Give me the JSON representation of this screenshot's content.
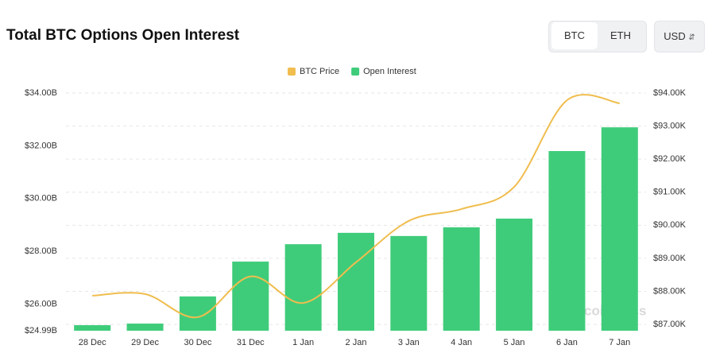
{
  "header": {
    "title": "Total BTC Options Open Interest",
    "asset_options": [
      "BTC",
      "ETH"
    ],
    "currency": "USD"
  },
  "chart_data": {
    "type": "bar-line",
    "watermark": "coinglass",
    "categories": [
      "28 Dec",
      "29 Dec",
      "30 Dec",
      "31 Dec",
      "1 Jan",
      "2 Jan",
      "3 Jan",
      "4 Jan",
      "5 Jan",
      "6 Jan",
      "7 Jan"
    ],
    "series": [
      {
        "name": "BTC Price",
        "type": "line",
        "axis": "y2",
        "color": "#f0bd4e",
        "values": [
          87.87,
          87.92,
          87.22,
          88.45,
          87.65,
          88.88,
          90.13,
          90.49,
          91.16,
          93.78,
          93.69
        ]
      },
      {
        "name": "Open Interest",
        "type": "bar",
        "color": "#3fcc7a",
        "values": [
          25.2,
          25.26,
          26.29,
          27.61,
          28.27,
          28.7,
          28.58,
          28.91,
          29.24,
          31.8,
          32.7
        ]
      }
    ],
    "ylim": [
      24.99,
      34.0
    ],
    "yticks": [
      {
        "value": 34,
        "label": "$34.00B"
      },
      {
        "value": 32,
        "label": "$32.00B"
      },
      {
        "value": 30,
        "label": "$30.00B"
      },
      {
        "value": 28,
        "label": "$28.00B"
      },
      {
        "value": 26,
        "label": "$26.00B"
      },
      {
        "value": 24.99,
        "label": "$24.99B"
      }
    ],
    "y2lim": [
      86.81,
      94.0
    ],
    "y2ticks": [
      {
        "value": 94,
        "label": "$94.00K"
      },
      {
        "value": 93,
        "label": "$93.00K"
      },
      {
        "value": 92,
        "label": "$92.00K"
      },
      {
        "value": 91,
        "label": "$91.00K"
      },
      {
        "value": 90,
        "label": "$90.00K"
      },
      {
        "value": 89,
        "label": "$89.00K"
      },
      {
        "value": 88,
        "label": "$88.00K"
      },
      {
        "value": 87,
        "label": "$87.00K"
      }
    ],
    "grid": true
  }
}
